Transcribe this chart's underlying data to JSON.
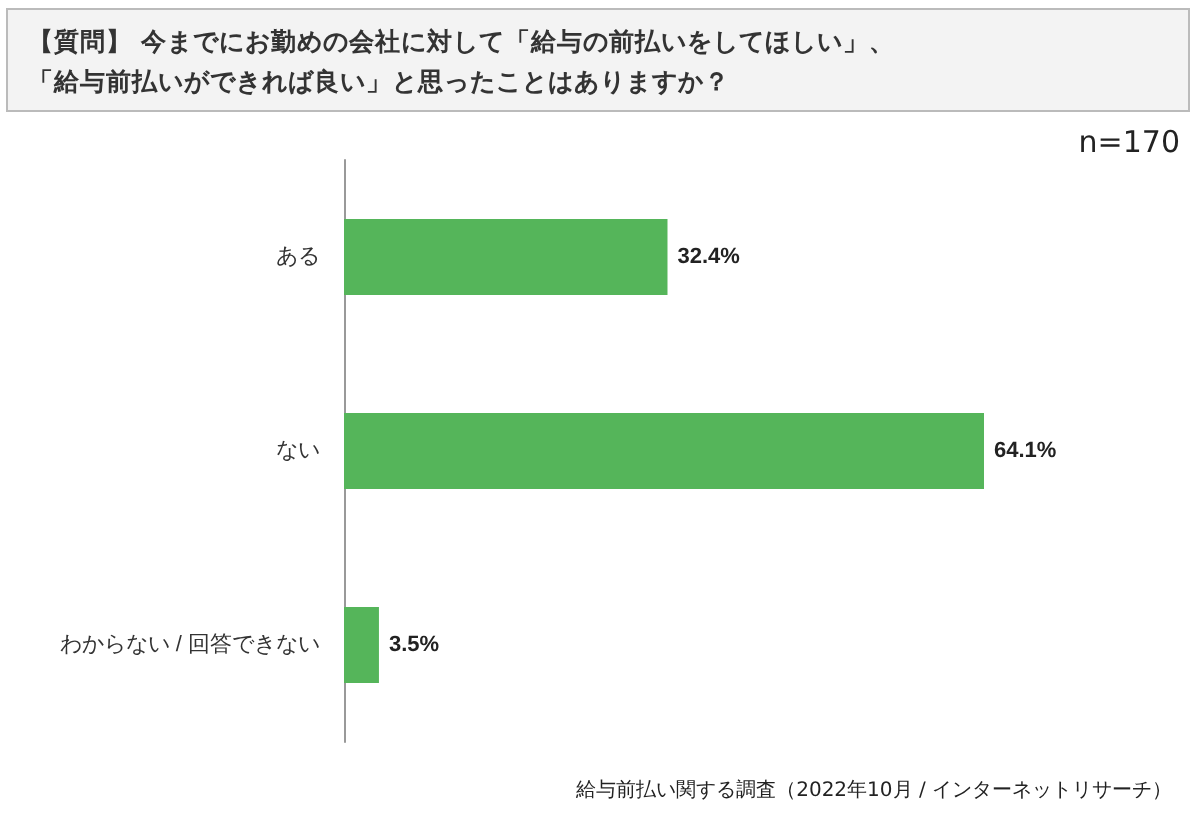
{
  "chart_data": {
    "type": "bar",
    "orientation": "horizontal",
    "title": "【質問】 今までにお勤めの会社に対して「給与の前払いをしてほしい」、「給与前払いができれば良い」と思ったことはありますか？",
    "categories": [
      "ある",
      "ない",
      "わからない / 回答できない"
    ],
    "values": [
      32.4,
      64.1,
      3.5
    ],
    "value_labels": [
      "32.4%",
      "64.1%",
      "3.5%"
    ],
    "color": "#55b55a",
    "tick_labels": "y",
    "annotations": [
      "n=170",
      "給与前払い関する調査（2022年10月 / インターネットリサーチ）"
    ]
  }
}
